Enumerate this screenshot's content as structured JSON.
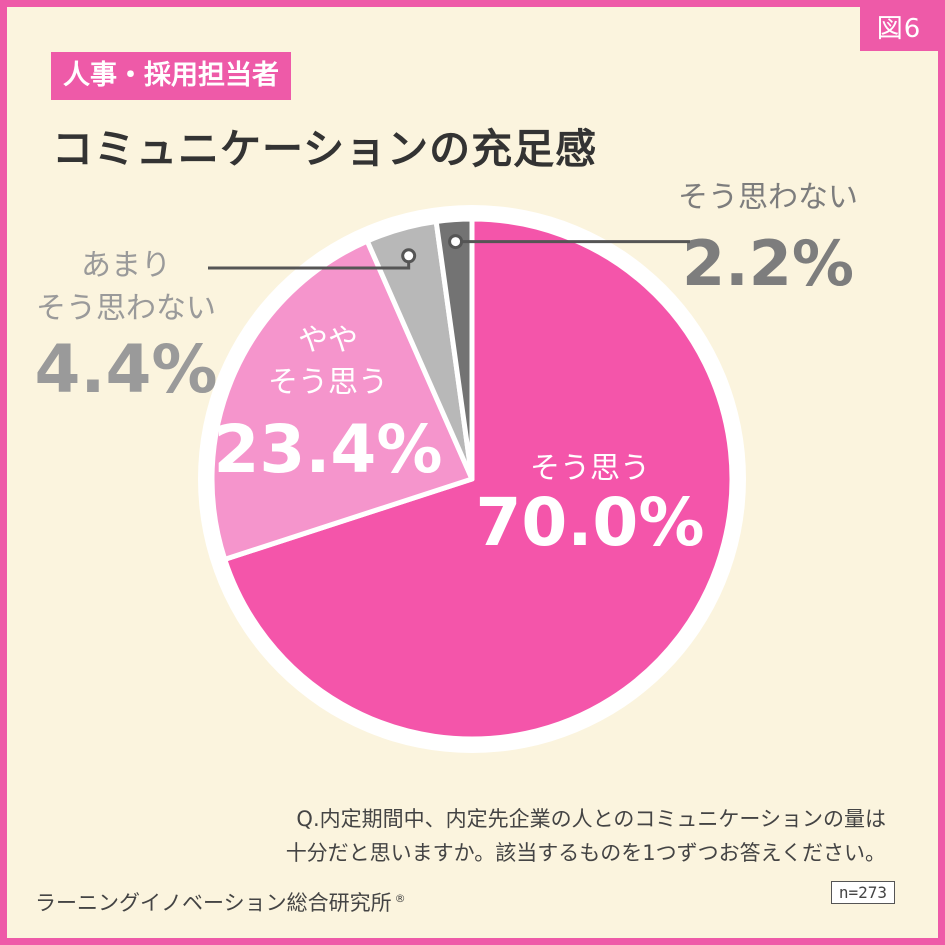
{
  "figure_tag": "図6",
  "audience_badge": "人事・採用担当者",
  "title": "コミュニケーションの充足感",
  "question": {
    "line1": "Q.内定期間中、内定先企業の人とのコミュニケーションの量は",
    "line2": "十分だと思いますか。該当するものを1つずつお答えください。"
  },
  "source": "ラーニングイノベーション総合研究所",
  "source_mark": "®",
  "sample_size": "n=273",
  "colors": {
    "background": "#fbf4de",
    "frame": "#ee5aa8",
    "agree": "#f455aa",
    "somewhat_agree": "#f595cc",
    "not_really": "#b8b8b8",
    "disagree": "#737373",
    "gray_label": "#9a9a9a",
    "dark_label": "#7d7d7d"
  },
  "chart_data": {
    "type": "pie",
    "start": "12 o'clock",
    "direction": "clockwise",
    "unit": "%",
    "slices": [
      {
        "label": "そう思う",
        "label_lines": [
          "そう思う"
        ],
        "value": 70.0,
        "value_text": "70.0%",
        "color": "#f455aa",
        "label_position": "inside"
      },
      {
        "label": "ややそう思う",
        "label_lines": [
          "やや",
          "そう思う"
        ],
        "value": 23.4,
        "value_text": "23.4%",
        "color": "#f595cc",
        "label_position": "inside"
      },
      {
        "label": "あまりそう思わない",
        "label_lines": [
          "あまり",
          "そう思わない"
        ],
        "value": 4.4,
        "value_text": "4.4%",
        "color": "#b8b8b8",
        "label_position": "outside-left"
      },
      {
        "label": "そう思わない",
        "label_lines": [
          "そう思わない"
        ],
        "value": 2.2,
        "value_text": "2.2%",
        "color": "#737373",
        "label_position": "outside-right"
      }
    ]
  }
}
